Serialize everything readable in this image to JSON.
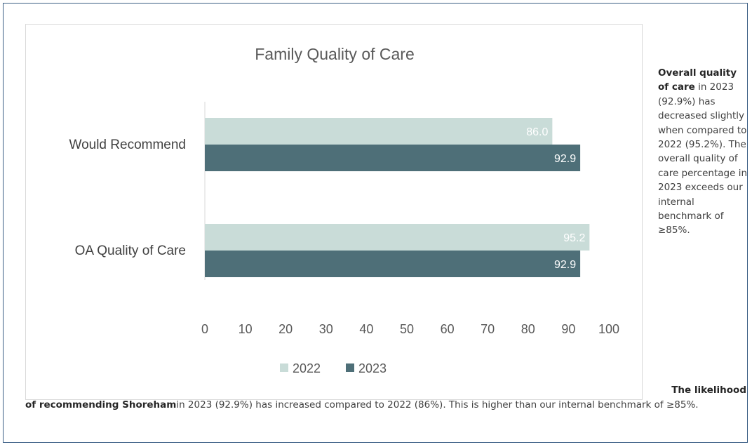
{
  "chart_data": {
    "type": "bar",
    "orientation": "horizontal",
    "title": "Family Quality of Care",
    "categories": [
      "Would Recommend",
      "OA Quality of Care"
    ],
    "series": [
      {
        "name": "2022",
        "values": [
          86.0,
          95.2
        ],
        "labels": [
          "86.0",
          "95.2"
        ],
        "color": "#c9dcd8"
      },
      {
        "name": "2023",
        "values": [
          92.9,
          92.9
        ],
        "labels": [
          "92.9",
          "92.9"
        ],
        "color": "#4e6f78"
      }
    ],
    "xlim": [
      0,
      100
    ],
    "xticks": [
      "0",
      "10",
      "20",
      "30",
      "40",
      "50",
      "60",
      "70",
      "80",
      "90",
      "100"
    ],
    "grid": false,
    "legend_position": "bottom"
  },
  "side_text": {
    "bold": "Overall quality of care",
    "rest": " in 2023 (92.9%) has decreased slightly when compared to 2022 (95.2%). The overall quality of care percentage in 2023 exceeds our internal benchmark of ≥85%."
  },
  "bottom_text": {
    "bold_lead": "The likelihood",
    "bold_cont": "of recommending Shoreham",
    "rest": "in 2023 (92.9%) has increased compared to 2022 (86%). This is higher than our internal benchmark of ≥85%."
  }
}
